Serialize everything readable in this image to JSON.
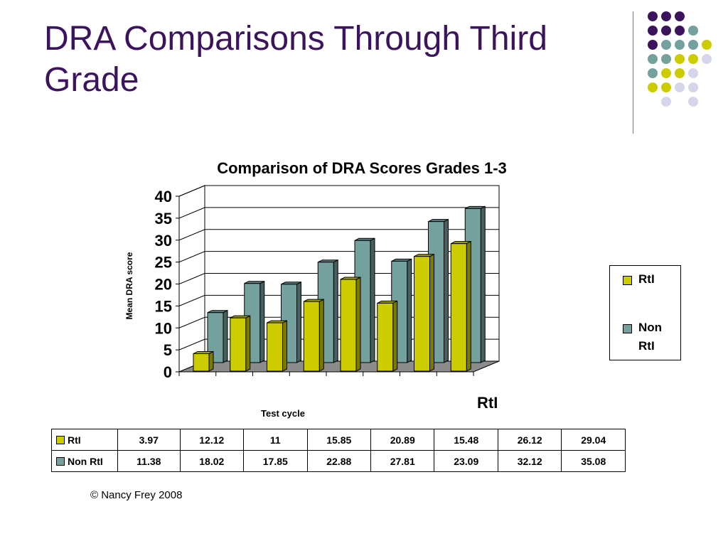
{
  "slide": {
    "title": "DRA Comparisons Through Third Grade",
    "copyright": "© Nancy Frey 2008"
  },
  "theme": {
    "title_color": "#3c145e",
    "dot_colors": [
      "#3c145e",
      "#74a09e",
      "#cccc00",
      "#d6d6ea"
    ]
  },
  "chart_data": {
    "type": "bar",
    "title": "Comparison of DRA Scores Grades 1-3",
    "xlabel": "Test cycle",
    "ylabel": "Mean DRA score",
    "ylim": [
      0,
      40
    ],
    "yticks": [
      0,
      5,
      10,
      15,
      20,
      25,
      30,
      35,
      40
    ],
    "depth_label": "RtI",
    "legend_position": "right",
    "grid": true,
    "series": [
      {
        "name": "RtI",
        "color": "#cccc00",
        "values": [
          3.97,
          12.12,
          11,
          15.85,
          20.89,
          15.48,
          26.12,
          29.04
        ]
      },
      {
        "name": "Non RtI",
        "color": "#74a09e",
        "values": [
          11.38,
          18.02,
          17.85,
          22.88,
          27.81,
          23.09,
          32.12,
          35.08
        ]
      }
    ]
  },
  "table": {
    "rows": [
      {
        "label": "RtI",
        "values": [
          "3.97",
          "12.12",
          "11",
          "15.85",
          "20.89",
          "15.48",
          "26.12",
          "29.04"
        ]
      },
      {
        "label": "Non RtI",
        "values": [
          "11.38",
          "18.02",
          "17.85",
          "22.88",
          "27.81",
          "23.09",
          "32.12",
          "35.08"
        ]
      }
    ]
  }
}
